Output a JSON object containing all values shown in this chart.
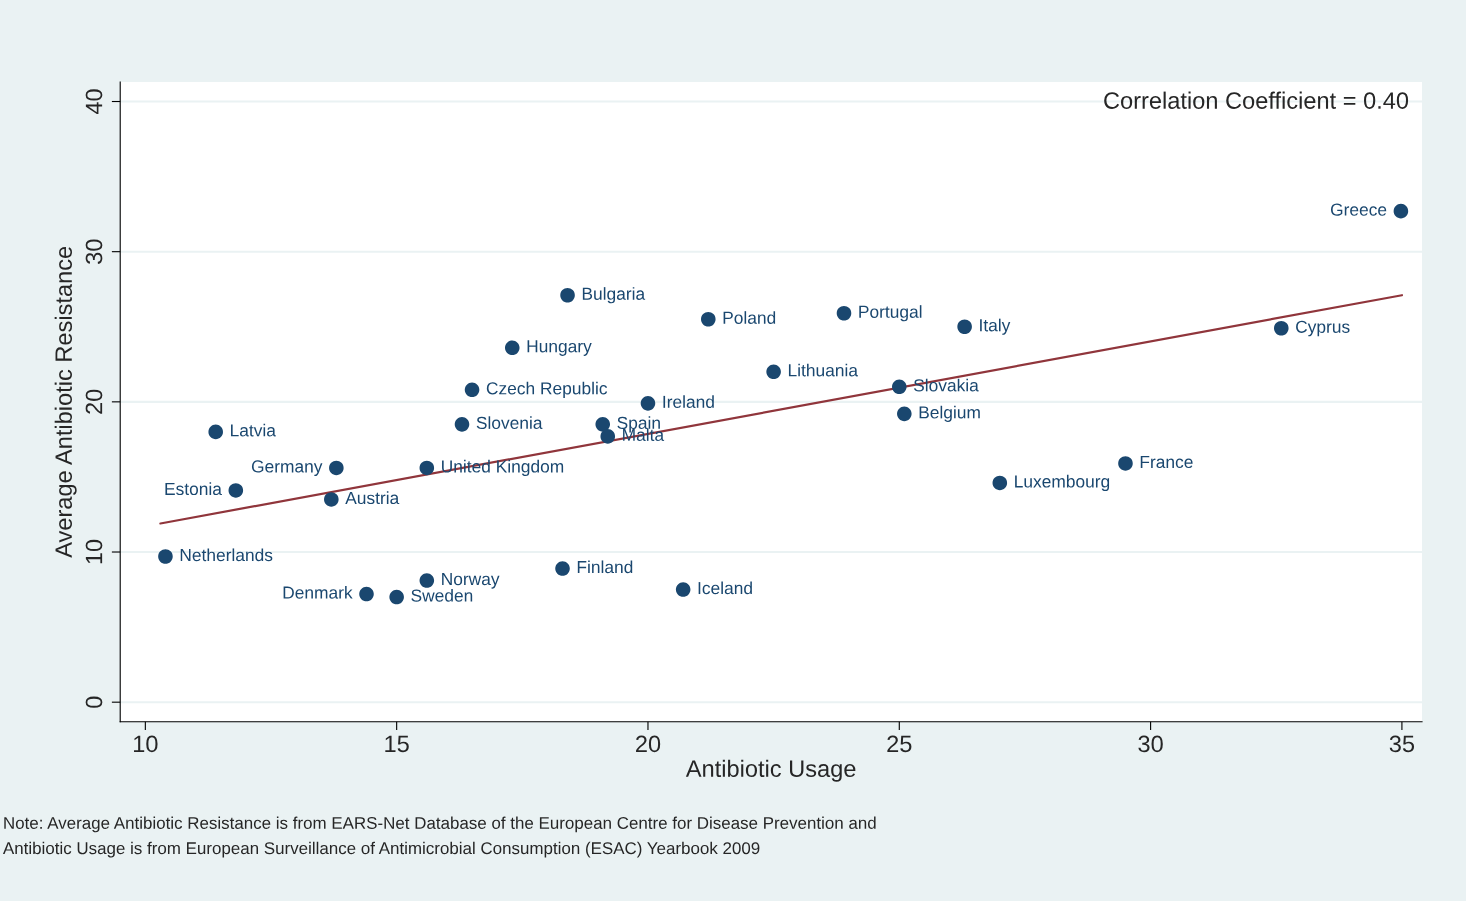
{
  "chart_data": {
    "type": "scatter",
    "xlabel": "Antibiotic Usage",
    "ylabel": "Average Antibiotic Resistance",
    "xlim": [
      9.5,
      35.4
    ],
    "ylim": [
      -1.3,
      41.3
    ],
    "xticks": [
      10,
      15,
      20,
      25,
      30,
      35
    ],
    "yticks": [
      0,
      10,
      20,
      30,
      40
    ],
    "grid": "y",
    "series": [
      {
        "marker": "circle",
        "color": "#1a476f",
        "x": [
          34.98,
          32.6,
          18.4,
          21.2,
          23.9,
          26.3,
          17.3,
          22.5,
          25.0,
          16.5,
          20.0,
          25.1,
          16.3,
          19.1,
          19.2,
          11.4,
          13.8,
          15.6,
          11.8,
          13.7,
          29.5,
          27.0,
          10.4,
          18.3,
          15.6,
          20.7,
          14.4,
          15.0
        ],
        "values": [
          32.7,
          24.9,
          27.1,
          25.5,
          25.9,
          25.0,
          23.6,
          22.0,
          21.0,
          20.8,
          19.9,
          19.2,
          18.5,
          18.5,
          17.7,
          18.0,
          15.6,
          15.6,
          14.1,
          13.5,
          15.9,
          14.6,
          9.7,
          8.9,
          8.1,
          7.5,
          7.2,
          7.0
        ]
      },
      {
        "type": "line",
        "color": "#90353b",
        "x": [
          10.3,
          35.0
        ],
        "values": [
          11.9,
          27.1
        ]
      }
    ],
    "annotations": [
      {
        "text": "Greece",
        "x": 34.98,
        "y": 32.7
      },
      {
        "text": "Cyprus",
        "x": 32.6,
        "y": 24.9
      },
      {
        "text": "Bulgaria",
        "x": 18.4,
        "y": 27.1
      },
      {
        "text": "Poland",
        "x": 21.2,
        "y": 25.5
      },
      {
        "text": "Portugal",
        "x": 23.9,
        "y": 25.9
      },
      {
        "text": "Italy",
        "x": 26.3,
        "y": 25.0
      },
      {
        "text": "Hungary",
        "x": 17.3,
        "y": 23.6
      },
      {
        "text": "Lithuania",
        "x": 22.5,
        "y": 22.0
      },
      {
        "text": "Slovakia",
        "x": 25.0,
        "y": 21.0
      },
      {
        "text": "Czech Republic",
        "x": 16.5,
        "y": 20.8
      },
      {
        "text": "Ireland",
        "x": 20.0,
        "y": 19.9
      },
      {
        "text": "Belgium",
        "x": 25.1,
        "y": 19.2
      },
      {
        "text": "Slovenia",
        "x": 16.3,
        "y": 18.5
      },
      {
        "text": "Spain",
        "x": 19.1,
        "y": 18.5
      },
      {
        "text": "Malta",
        "x": 19.2,
        "y": 17.7
      },
      {
        "text": "Latvia",
        "x": 11.4,
        "y": 18.0
      },
      {
        "text": "Germany",
        "x": 13.8,
        "y": 15.6
      },
      {
        "text": "United Kingdom",
        "x": 15.6,
        "y": 15.6
      },
      {
        "text": "Estonia",
        "x": 11.8,
        "y": 14.1
      },
      {
        "text": "Austria",
        "x": 13.7,
        "y": 13.5
      },
      {
        "text": "France",
        "x": 29.5,
        "y": 15.9
      },
      {
        "text": "Luxembourg",
        "x": 27.0,
        "y": 14.6
      },
      {
        "text": "Netherlands",
        "x": 10.4,
        "y": 9.7
      },
      {
        "text": "Finland",
        "x": 18.3,
        "y": 8.9
      },
      {
        "text": "Norway",
        "x": 15.6,
        "y": 8.1
      },
      {
        "text": "Iceland",
        "x": 20.7,
        "y": 7.5
      },
      {
        "text": "Denmark",
        "x": 14.4,
        "y": 7.2
      },
      {
        "text": "Sweden",
        "x": 15.0,
        "y": 7.0
      },
      "Correlation Coefficient = 0.40",
      "Note: Average Antibiotic Resistance is from EARS-Net Database of the European Centre for Disease Prevention and",
      "Antibiotic Usage is from European Surveillance of Antimicrobial Consumption (ESAC) Yearbook 2009"
    ]
  }
}
